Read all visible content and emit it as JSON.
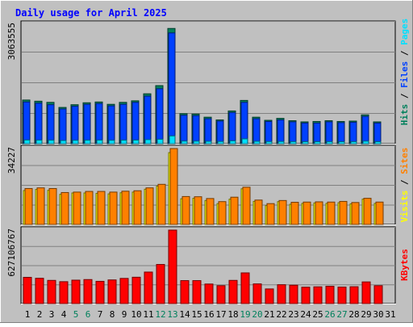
{
  "title": "Daily usage for April 2025",
  "colors": {
    "background": "#c0c0c0",
    "hits": "#00805c",
    "files": "#0040ff",
    "pages": "#00e0ff",
    "visits": "#ffff00",
    "sites": "#ff8000",
    "kbytes": "#ff0000",
    "title": "#0000ff",
    "weekend_day": "#00805c"
  },
  "chart_data": [
    {
      "type": "bar",
      "panel": "requests",
      "categories": [
        "1",
        "2",
        "3",
        "4",
        "5",
        "6",
        "7",
        "8",
        "9",
        "10",
        "11",
        "12",
        "13",
        "14",
        "15",
        "16",
        "17",
        "18",
        "19",
        "20",
        "21",
        "22",
        "23",
        "24",
        "25",
        "26",
        "27",
        "28",
        "29",
        "30",
        "31"
      ],
      "weekend_days": [
        "5",
        "6",
        "12",
        "13",
        "19",
        "20",
        "26",
        "27"
      ],
      "y_label": "3063555",
      "ylim": [
        0,
        3063555
      ],
      "grid": true,
      "legend": [
        {
          "text": "Hits",
          "color_key": "hits"
        },
        {
          "text": " / ",
          "color_key": "separator"
        },
        {
          "text": "Files",
          "color_key": "files"
        },
        {
          "text": " / ",
          "color_key": "separator"
        },
        {
          "text": "Pages",
          "color_key": "pages"
        }
      ],
      "series": [
        {
          "name": "Hits",
          "values": [
            1120000,
            1090000,
            1060000,
            930000,
            1000000,
            1050000,
            1070000,
            1010000,
            1060000,
            1100000,
            1280000,
            1490000,
            2955000,
            770000,
            760000,
            680000,
            610000,
            840000,
            1110000,
            680000,
            600000,
            650000,
            590000,
            560000,
            570000,
            590000,
            570000,
            580000,
            740000,
            560000,
            0
          ]
        },
        {
          "name": "Files",
          "values": [
            1070000,
            1040000,
            1000000,
            890000,
            960000,
            1010000,
            1030000,
            970000,
            1010000,
            1060000,
            1220000,
            1410000,
            2840000,
            730000,
            720000,
            640000,
            580000,
            800000,
            1060000,
            640000,
            570000,
            610000,
            560000,
            530000,
            530000,
            560000,
            540000,
            550000,
            700000,
            530000,
            0
          ]
        },
        {
          "name": "Pages",
          "values": [
            95000,
            92000,
            90000,
            82000,
            87000,
            90000,
            92000,
            88000,
            90000,
            93000,
            105000,
            115000,
            200000,
            68000,
            66000,
            62000,
            58000,
            74000,
            125000,
            62000,
            56000,
            58000,
            54000,
            52000,
            52000,
            54000,
            52000,
            53000,
            66000,
            52000,
            0
          ]
        }
      ]
    },
    {
      "type": "bar",
      "panel": "visitors",
      "categories": [
        "1",
        "2",
        "3",
        "4",
        "5",
        "6",
        "7",
        "8",
        "9",
        "10",
        "11",
        "12",
        "13",
        "14",
        "15",
        "16",
        "17",
        "18",
        "19",
        "20",
        "21",
        "22",
        "23",
        "24",
        "25",
        "26",
        "27",
        "28",
        "29",
        "30",
        "31"
      ],
      "y_label": "34227",
      "ylim": [
        0,
        34227
      ],
      "grid": true,
      "legend": [
        {
          "text": "Visits",
          "color_key": "visits"
        },
        {
          "text": " / ",
          "color_key": "separator"
        },
        {
          "text": "Sites",
          "color_key": "sites"
        }
      ],
      "series": [
        {
          "name": "Visits",
          "values": [
            15300,
            15800,
            15400,
            13600,
            14200,
            14200,
            14000,
            13800,
            14300,
            14600,
            15900,
            17300,
            32400,
            11600,
            11800,
            10800,
            9400,
            11400,
            16100,
            10400,
            8500,
            10300,
            9100,
            9500,
            9700,
            9500,
            9800,
            9300,
            11400,
            9500,
            0
          ]
        },
        {
          "name": "Sites",
          "values": [
            16200,
            16500,
            16200,
            14400,
            14600,
            14900,
            14900,
            14600,
            15000,
            15200,
            16500,
            18100,
            34227,
            12600,
            12500,
            11700,
            10300,
            12300,
            16800,
            11000,
            9400,
            10800,
            10000,
            10100,
            10200,
            10100,
            10400,
            9900,
            11800,
            10100,
            0
          ]
        }
      ]
    },
    {
      "type": "bar",
      "panel": "kbytes",
      "categories": [
        "1",
        "2",
        "3",
        "4",
        "5",
        "6",
        "7",
        "8",
        "9",
        "10",
        "11",
        "12",
        "13",
        "14",
        "15",
        "16",
        "17",
        "18",
        "19",
        "20",
        "21",
        "22",
        "23",
        "24",
        "25",
        "26",
        "27",
        "28",
        "29",
        "30",
        "31"
      ],
      "y_label": "627106767",
      "ylim": [
        0,
        627106767
      ],
      "grid": true,
      "legend": [
        {
          "text": "KBytes",
          "color_key": "kbytes"
        }
      ],
      "series": [
        {
          "name": "KBytes",
          "values": [
            224000000,
            216000000,
            198000000,
            187000000,
            200000000,
            205000000,
            190000000,
            202000000,
            215000000,
            225000000,
            269000000,
            334000000,
            627106767,
            196000000,
            196000000,
            167000000,
            153000000,
            198000000,
            262000000,
            168000000,
            125000000,
            161000000,
            157000000,
            140000000,
            143000000,
            148000000,
            141000000,
            144000000,
            185000000,
            153000000,
            0
          ]
        }
      ]
    }
  ]
}
